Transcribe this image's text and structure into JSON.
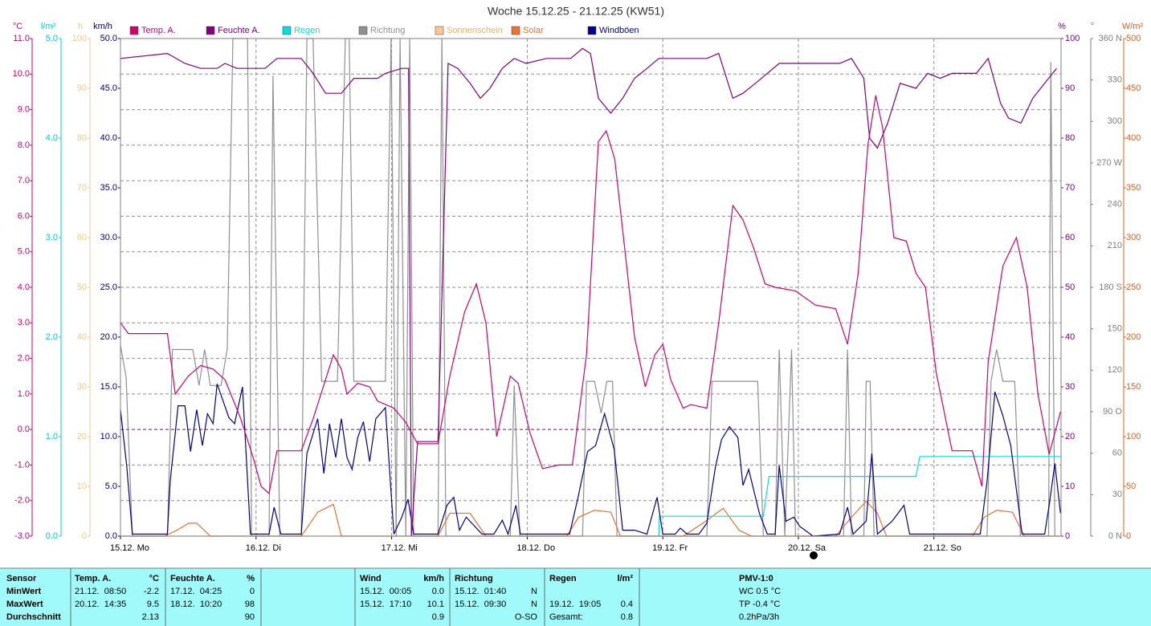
{
  "chart_data": {
    "type": "line",
    "title": "Woche 15.12.25 - 21.12.25 (KW51)",
    "grid": true,
    "grid_axis": "°C",
    "xlim": [
      0,
      166.5
    ],
    "xticks": [
      {
        "value": 0,
        "label": "15.12. Mo"
      },
      {
        "value": 24,
        "label": "16.12. Di"
      },
      {
        "value": 48,
        "label": "17.12. Mi"
      },
      {
        "value": 72,
        "label": "18.12. Do"
      },
      {
        "value": 96,
        "label": "19.12. Fr"
      },
      {
        "value": 120,
        "label": "20.12. Sa"
      },
      {
        "value": 144,
        "label": "21.12. So"
      }
    ],
    "axes": [
      {
        "title": "°C",
        "color": "#d0006f",
        "ylim": [
          -3,
          11
        ],
        "yticks": [
          {
            "value": -3,
            "label": "-3.0"
          },
          {
            "value": -2,
            "label": "-2.0"
          },
          {
            "value": -1,
            "label": "-1.0"
          },
          {
            "value": 0,
            "label": "0.0"
          },
          {
            "value": 1,
            "label": "1.0"
          },
          {
            "value": 2,
            "label": "2.0"
          },
          {
            "value": 3,
            "label": "3.0"
          },
          {
            "value": 4,
            "label": "4.0"
          },
          {
            "value": 5,
            "label": "5.0"
          },
          {
            "value": 6,
            "label": "6.0"
          },
          {
            "value": 7,
            "label": "7.0"
          },
          {
            "value": 8,
            "label": "8.0"
          },
          {
            "value": 9,
            "label": "9.0"
          },
          {
            "value": 10,
            "label": "10.0"
          },
          {
            "value": 11,
            "label": "11.0"
          }
        ]
      },
      {
        "title": "l/m²",
        "color": "#00d0d0",
        "ylim": [
          0,
          5
        ],
        "yticks": [
          {
            "value": 0,
            "label": "0.0"
          },
          {
            "value": 1,
            "label": "1.0"
          },
          {
            "value": 2,
            "label": "2.0"
          },
          {
            "value": 3,
            "label": "3.0"
          },
          {
            "value": 4,
            "label": "4.0"
          },
          {
            "value": 5,
            "label": "5.0"
          }
        ]
      },
      {
        "title": "h",
        "color": "#f0c890",
        "ylim": [
          0,
          100
        ],
        "yticks": [
          0,
          10,
          20,
          30,
          40,
          50,
          60,
          70,
          80,
          90,
          100
        ]
      },
      {
        "title": "km/h",
        "color": "#000080",
        "ylim": [
          0,
          50
        ],
        "yticks": [
          {
            "value": 0,
            "label": "0.0"
          },
          {
            "value": 5,
            "label": "5.0"
          },
          {
            "value": 10,
            "label": "10.0"
          },
          {
            "value": 15,
            "label": "15.0"
          },
          {
            "value": 20,
            "label": "20.0"
          },
          {
            "value": 25,
            "label": "25.0"
          },
          {
            "value": 30,
            "label": "30.0"
          },
          {
            "value": 35,
            "label": "35.0"
          },
          {
            "value": 40,
            "label": "40.0"
          },
          {
            "value": 45,
            "label": "45.0"
          },
          {
            "value": 50,
            "label": "50.0"
          }
        ]
      },
      {
        "title": "%",
        "color": "#800080",
        "ylim": [
          0,
          100
        ],
        "yticks": [
          0,
          10,
          20,
          30,
          40,
          50,
          60,
          70,
          80,
          90,
          100
        ]
      },
      {
        "title": "°",
        "color": "#808080",
        "ylim": [
          0,
          360
        ],
        "yticks": [
          {
            "value": 0,
            "label": "0 N"
          },
          30,
          60,
          {
            "value": 90,
            "label": "90 O"
          },
          120,
          150,
          {
            "value": 180,
            "label": "180 S"
          },
          210,
          240,
          {
            "value": 270,
            "label": "270 W"
          },
          300,
          330,
          {
            "value": 360,
            "label": "360 N"
          }
        ]
      },
      {
        "title": "W/m²",
        "color": "#e06020",
        "ylim": [
          0,
          500
        ],
        "yticks": [
          0,
          50,
          100,
          150,
          200,
          250,
          300,
          350,
          400,
          450,
          500
        ]
      }
    ],
    "series": [
      {
        "name": "Temp. A.",
        "color": "#d0006f",
        "axis": "°C",
        "x": [
          0,
          1.4,
          8.3,
          9.7,
          12,
          14.2,
          16.4,
          18.5,
          21.3,
          23.5,
          24.9,
          26.3,
          27.7,
          32,
          34.1,
          36.3,
          37.7,
          39.1,
          40.1,
          42,
          44.1,
          45.5,
          48.4,
          50.5,
          52.6,
          56.2,
          58.3,
          60.9,
          63,
          64.7,
          66.6,
          69,
          70.4,
          72.5,
          74.7,
          77.5,
          80,
          82.5,
          84.6,
          86,
          87.5,
          89.6,
          91,
          92.9,
          94.6,
          96,
          97.4,
          99.6,
          101,
          103.8,
          105.9,
          108.4,
          110.2,
          112.1,
          114.1,
          115.9,
          119.5,
          123,
          126.6,
          128.7,
          130.6,
          132.3,
          133.7,
          134.9,
          136.9,
          139.1,
          140.8,
          142.5,
          144.4,
          147.2,
          150.8,
          152.5,
          153.6,
          156.2,
          158.6,
          160.5,
          162.4,
          164.4,
          166.4
        ],
        "values": [
          3.0,
          2.7,
          2.7,
          1.0,
          1.5,
          1.8,
          1.7,
          1.4,
          0.3,
          -0.8,
          -1.6,
          -1.8,
          -0.6,
          -0.6,
          0.3,
          1.4,
          2.1,
          1.7,
          1.0,
          1.3,
          1.2,
          0.8,
          0.6,
          0.2,
          -0.4,
          -0.4,
          1.5,
          3.3,
          4.1,
          3.0,
          -0.2,
          1.5,
          1.3,
          -0.1,
          -1.1,
          -1.0,
          -1.0,
          2.1,
          8.1,
          8.4,
          7.6,
          4.6,
          2.6,
          1.2,
          2.1,
          2.4,
          1.4,
          0.6,
          0.7,
          0.6,
          3.0,
          6.3,
          5.9,
          5.1,
          4.1,
          4.0,
          3.9,
          3.5,
          3.4,
          2.4,
          4.4,
          8.0,
          9.4,
          8.5,
          5.4,
          5.3,
          4.4,
          4.0,
          1.6,
          -0.6,
          -0.6,
          -1.6,
          1.9,
          4.6,
          5.4,
          4.0,
          1.0,
          -0.7,
          0.5
        ]
      },
      {
        "name": "Feuchte A.",
        "color": "#800080",
        "axis": "%",
        "x": [
          0,
          8.3,
          11.4,
          14.2,
          17.1,
          18.5,
          20.6,
          25.6,
          27.7,
          32,
          34.1,
          36.3,
          39.1,
          41.3,
          43.4,
          45.5,
          46.9,
          49.8,
          51,
          51.5,
          52.6,
          56.2,
          58,
          59.7,
          61.9,
          63.7,
          65.4,
          67.6,
          69.7,
          71.8,
          75.4,
          79.7,
          81.8,
          83.2,
          84.6,
          86.8,
          88.9,
          91,
          93.2,
          95.3,
          103.8,
          105.9,
          108.4,
          110.2,
          112.4,
          114.5,
          116.6,
          120.9,
          127.3,
          129.4,
          131.6,
          132.6,
          134,
          135.8,
          138,
          140.8,
          142.9,
          145.1,
          147.2,
          151.5,
          153.6,
          155.8,
          157.2,
          159.4,
          161.5,
          163.6,
          165.7
        ],
        "values": [
          96,
          97,
          95,
          94,
          94,
          95,
          94,
          94,
          96,
          96,
          93,
          89,
          89,
          92,
          92,
          92,
          93,
          94,
          94,
          0,
          19,
          19,
          95,
          94,
          91,
          88,
          90,
          94,
          96,
          95,
          96,
          96,
          98,
          97,
          88,
          85,
          88,
          92,
          94,
          96,
          96,
          97,
          88,
          89,
          91,
          93,
          95,
          95,
          95,
          96,
          92,
          80,
          78,
          83,
          91,
          90,
          93,
          92,
          93,
          93,
          96,
          87,
          84,
          83,
          88,
          91,
          94
        ]
      },
      {
        "name": "Regen",
        "color": "#00e0e0",
        "axis": "l/m²",
        "x": [
          95.3,
          95.4,
          113.8,
          114.8,
          140.8,
          141.5,
          166.4
        ],
        "values": [
          0,
          0.2,
          0.2,
          0.6,
          0.6,
          0.8,
          0.8
        ]
      },
      {
        "name": "Richtung",
        "color": "#909090",
        "axis": "°",
        "x": [
          0,
          1,
          2.1,
          8.3,
          9.2,
          12.8,
          13.9,
          14.9,
          15.9,
          17.8,
          18.9,
          19.9,
          22.5,
          23.2,
          26.3,
          27,
          28.2,
          32,
          33,
          34.1,
          35.6,
          38.4,
          39.8,
          40.5,
          41.3,
          46.9,
          47.9,
          48.8,
          49.5,
          50.5,
          51.2,
          51.9,
          56.2,
          56.9,
          57.6,
          69,
          69.7,
          70.7,
          81.8,
          82.5,
          83.9,
          85.1,
          86.1,
          87.1,
          87.9,
          103.8,
          104.7,
          112.8,
          113.8,
          115.9,
          116.6,
          117.6,
          118.8,
          119.5,
          128,
          128.7,
          129.4,
          131.6,
          132,
          132.7,
          133.4,
          153.4,
          154.1,
          155.1,
          156.2,
          158.3,
          159.3,
          164.3,
          164.7,
          165.4
        ],
        "values": [
          138,
          115,
          0,
          0,
          135,
          135,
          109,
          135,
          109,
          109,
          135,
          360,
          360,
          0,
          0,
          333,
          0,
          0,
          360,
          360,
          112,
          112,
          360,
          360,
          112,
          112,
          360,
          0,
          360,
          0,
          360,
          0,
          0,
          360,
          0,
          0,
          109,
          0,
          0,
          112,
          112,
          89,
          112,
          112,
          0,
          0,
          112,
          112,
          0,
          0,
          135,
          0,
          135,
          0,
          0,
          135,
          0,
          0,
          112,
          112,
          0,
          0,
          112,
          135,
          112,
          112,
          0,
          0,
          343,
          0
        ]
      },
      {
        "name": "Sonnenschein",
        "color": "#ffc890",
        "axis": "h",
        "x": [
          0,
          166.4
        ],
        "values": [
          0,
          0
        ]
      },
      {
        "name": "Solar",
        "color": "#f07030",
        "axis": "W/m²",
        "x": [
          0,
          7.8,
          10,
          12.1,
          13.5,
          15.9,
          32,
          34.9,
          37.7,
          39.1,
          56.2,
          58.3,
          61.9,
          64.7,
          79,
          81.1,
          83.9,
          86.8,
          88.5,
          99.6,
          103.1,
          106.7,
          109.5,
          111.7,
          126.6,
          129.4,
          132,
          134,
          135.6,
          150.8,
          152.9,
          155.1,
          157.9,
          160,
          166.4
        ],
        "values": [
          0,
          0,
          6,
          13,
          13,
          0,
          0,
          24,
          32,
          0,
          0,
          23,
          23,
          0,
          0,
          19,
          26,
          24,
          0,
          0,
          13,
          28,
          6,
          0,
          0,
          19,
          35,
          23,
          0,
          0,
          19,
          26,
          24,
          0,
          0
        ]
      },
      {
        "name": "Windböen",
        "color": "#000090",
        "axis": "km/h",
        "x": [
          0,
          1.1,
          2.1,
          8.3,
          8.8,
          10.2,
          11.4,
          12.4,
          13.5,
          14.5,
          15.4,
          16.4,
          17.1,
          19.2,
          20.2,
          21.6,
          23,
          26.3,
          27.2,
          28.4,
          32,
          33,
          34.9,
          36,
          37,
          38.1,
          39.1,
          40.1,
          41,
          42,
          43,
          44.1,
          45.2,
          46.9,
          48.4,
          49.8,
          50.9,
          51.9,
          56.2,
          57.8,
          59,
          60,
          61.2,
          64,
          66.1,
          67.6,
          68.6,
          70,
          70.8,
          79.5,
          81,
          82.7,
          84.1,
          85.7,
          87.4,
          88.9,
          91,
          93.2,
          95,
          96,
          98.2,
          99.1,
          100.3,
          102.4,
          103.8,
          105.3,
          106.4,
          107.8,
          109.3,
          110.2,
          111.2,
          113.1,
          114.5,
          115.9,
          116.6,
          117.8,
          119.2,
          120.2,
          122.6,
          127.3,
          128.7,
          129.7,
          132,
          133,
          134,
          136.6,
          138.7,
          139.7,
          152.2,
          153.4,
          154.8,
          156.2,
          157.6,
          159.6,
          163.6,
          164.4,
          165.4,
          166.4
        ],
        "values": [
          12.7,
          7.1,
          0.2,
          0.2,
          5.5,
          13.1,
          13.1,
          8.5,
          12.7,
          9.1,
          12.3,
          11.3,
          15.3,
          11.9,
          11.3,
          15,
          0.2,
          0.2,
          2.9,
          0.2,
          0.2,
          8.3,
          11.8,
          6.3,
          11.3,
          7.9,
          11.8,
          7.9,
          6.7,
          9.9,
          11.5,
          7.5,
          11.8,
          12.9,
          0.2,
          1.9,
          3.7,
          0.2,
          0.2,
          3.1,
          3.9,
          0.6,
          1.9,
          0.2,
          0.2,
          1.6,
          0.2,
          3.1,
          0.2,
          0.2,
          3.9,
          8.5,
          9.1,
          12.3,
          8.7,
          0.6,
          0.6,
          0.2,
          3.9,
          0.2,
          0.2,
          0.8,
          0.2,
          0.2,
          1.3,
          6.9,
          9.7,
          11,
          9.9,
          5.1,
          6.7,
          2.3,
          0.2,
          0.2,
          7.1,
          1.5,
          1.9,
          1,
          0,
          0.2,
          2.9,
          0.2,
          1.5,
          8.3,
          0.2,
          1.5,
          3.1,
          0.2,
          0.2,
          5.5,
          14.5,
          12.1,
          9.1,
          0.2,
          0.2,
          3.1,
          7.3,
          2.3
        ]
      }
    ]
  },
  "stats_table": {
    "rows": [
      [
        "Sensor",
        "Temp. A.",
        "°C",
        "Feuchte A.",
        "%",
        "Wind",
        "km/h",
        "Richtung",
        null,
        "Regen",
        "l/m²",
        "PMV-1:0"
      ],
      [
        "MinWert",
        "21.12.  08:50",
        "-2.2",
        "17.12.  04:25",
        "0",
        "15.12.  00:05",
        "0.0",
        "15.12.  01:40",
        "N",
        null,
        null,
        "WC 0.5 °C"
      ],
      [
        "MaxWert",
        "20.12.  14:35",
        "9.5",
        "18.12.  10:20",
        "98",
        "15.12.  17:10",
        "10.1",
        "15.12.  09:30",
        "N",
        "19.12.  19:05",
        "0.4",
        "TP -0.4 °C"
      ],
      [
        "Durchschnitt",
        null,
        "2.13",
        null,
        "90",
        null,
        "0.9",
        null,
        "O-SO",
        "Gesamt:",
        "0.8",
        "0.2hPa/3h"
      ]
    ]
  }
}
